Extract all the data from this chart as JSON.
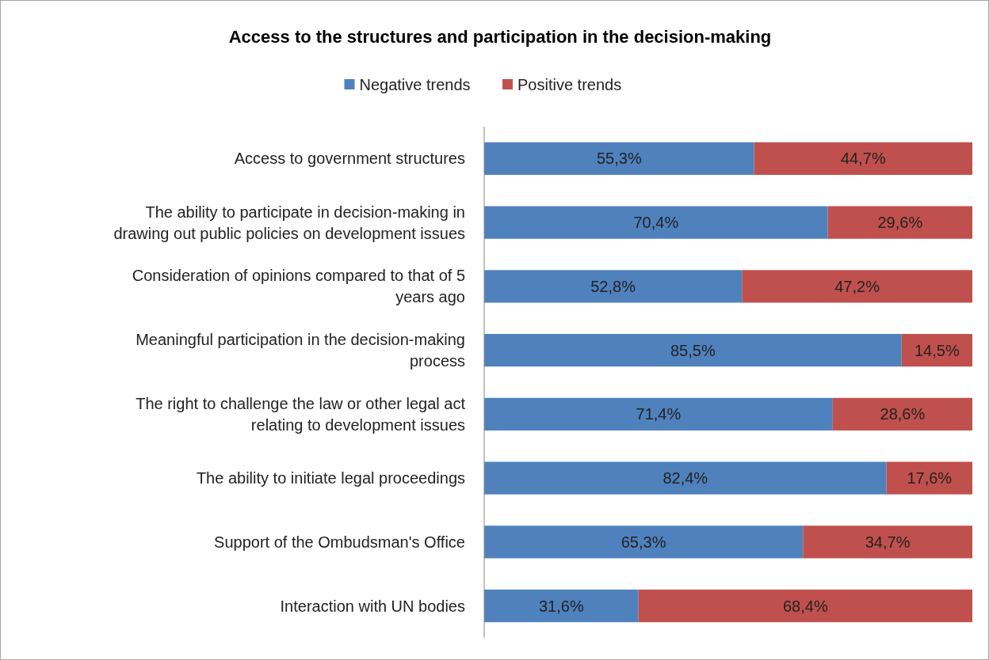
{
  "chart_data": {
    "type": "bar",
    "orientation": "horizontal",
    "stacked": true,
    "title": "Access to the structures and participation in the decision-making",
    "categories": [
      "Access to government structures",
      "The ability to participate in decision-making in drawing out public policies on development issues",
      "Consideration of opinions compared to that of 5 years ago",
      "Meaningful participation in the decision-making process",
      "The right to challenge the law or other legal act relating to development issues",
      "The ability to initiate legal proceedings",
      "Support of the Ombudsman's Office",
      "Interaction with UN bodies"
    ],
    "series": [
      {
        "name": "Negative trends",
        "color": "#4f81bd",
        "values": [
          55.3,
          70.4,
          52.8,
          85.5,
          71.4,
          82.4,
          65.3,
          31.6
        ],
        "value_labels": [
          "55,3%",
          "70,4%",
          "52,8%",
          "85,5%",
          "71,4%",
          "82,4%",
          "65,3%",
          "31,6%"
        ]
      },
      {
        "name": "Positive trends",
        "color": "#c0504d",
        "values": [
          44.7,
          29.6,
          47.2,
          14.5,
          28.6,
          17.6,
          34.7,
          68.4
        ],
        "value_labels": [
          "44,7%",
          "29,6%",
          "47,2%",
          "14,5%",
          "28,6%",
          "17,6%",
          "34,7%",
          "68,4%"
        ]
      }
    ],
    "xlim": [
      0,
      100
    ],
    "tick_labels": "y",
    "legend": "top"
  }
}
